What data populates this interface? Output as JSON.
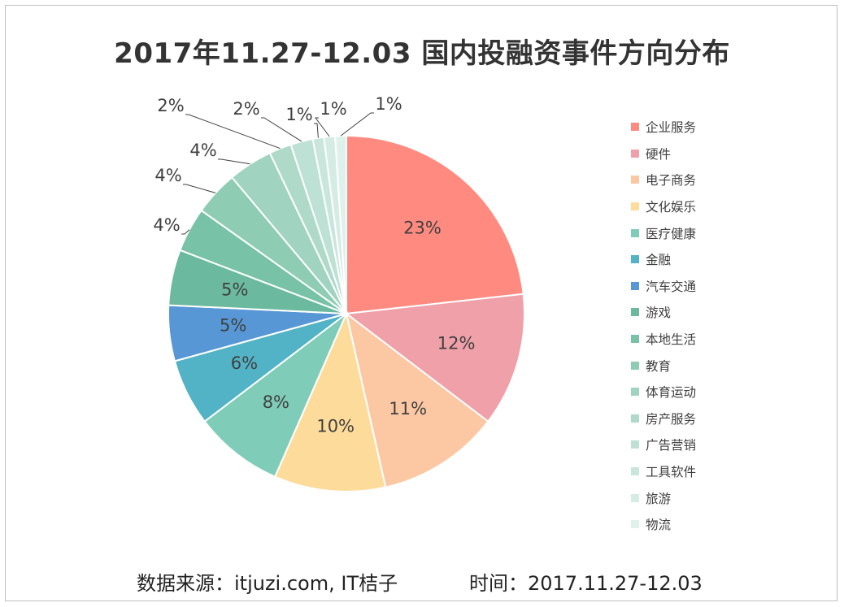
{
  "title": "2017年11.27-12.03 国内投融资事件方向分布",
  "footer": {
    "source": "数据来源：itjuzi.com, IT桔子",
    "time": "时间：2017.11.27-12.03"
  },
  "chart_data": {
    "type": "pie",
    "title": "2017年11.27-12.03 国内投融资事件方向分布",
    "legend_position": "right",
    "slices": [
      {
        "label": "企业服务",
        "value": 23,
        "display": "23%",
        "color": "#FF8A80"
      },
      {
        "label": "硬件",
        "value": 12,
        "display": "12%",
        "color": "#F0A0A8"
      },
      {
        "label": "电子商务",
        "value": 11,
        "display": "11%",
        "color": "#FCC8A4"
      },
      {
        "label": "文化娱乐",
        "value": 10,
        "display": "10%",
        "color": "#FDDC9B"
      },
      {
        "label": "医疗健康",
        "value": 8,
        "display": "8%",
        "color": "#7FCCB8"
      },
      {
        "label": "金融",
        "value": 6,
        "display": "6%",
        "color": "#52B3C6"
      },
      {
        "label": "汽车交通",
        "value": 5,
        "display": "5%",
        "color": "#5797D5"
      },
      {
        "label": "游戏",
        "value": 5,
        "display": "5%",
        "color": "#6BBA9F"
      },
      {
        "label": "本地生活",
        "value": 4,
        "display": "4%",
        "color": "#78C3A8"
      },
      {
        "label": "教育",
        "value": 4,
        "display": "4%",
        "color": "#8ECCB4"
      },
      {
        "label": "体育运动",
        "value": 4,
        "display": "4%",
        "color": "#A0D3C0"
      },
      {
        "label": "房产服务",
        "value": 2,
        "display": "2%",
        "color": "#AFDACA"
      },
      {
        "label": "广告营销",
        "value": 2,
        "display": "2%",
        "color": "#BDE1D4"
      },
      {
        "label": "工具软件",
        "value": 1,
        "display": "1%",
        "color": "#C9E6DC"
      },
      {
        "label": "旅游",
        "value": 1,
        "display": "1%",
        "color": "#D5ECE4"
      },
      {
        "label": "物流",
        "value": 1,
        "display": "1%",
        "color": "#DFF1EB"
      }
    ]
  }
}
